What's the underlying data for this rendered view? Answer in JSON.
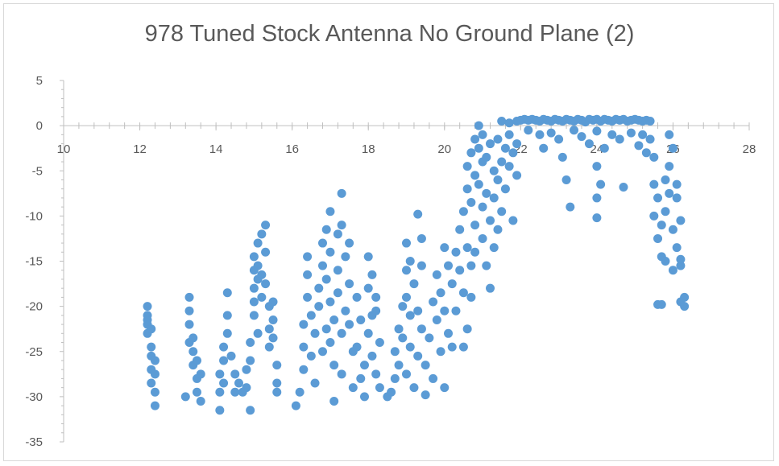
{
  "chart_data": {
    "type": "scatter",
    "title": "978 Tuned Stock Antenna No Ground Plane (2)",
    "xlabel": "",
    "ylabel": "",
    "xlim": [
      10,
      28
    ],
    "ylim": [
      -35,
      5
    ],
    "xticks": [
      10,
      12,
      14,
      16,
      18,
      20,
      22,
      24,
      26,
      28
    ],
    "yticks": [
      5,
      0,
      -5,
      -10,
      -15,
      -20,
      -25,
      -30,
      -35
    ],
    "grid": false,
    "legend": "none",
    "series": [
      {
        "color": "#5b9bd5",
        "points": [
          [
            12.2,
            -20.0
          ],
          [
            12.2,
            -21.0
          ],
          [
            12.2,
            -22.0
          ],
          [
            12.2,
            -23.0
          ],
          [
            12.3,
            -24.5
          ],
          [
            12.3,
            -25.5
          ],
          [
            12.3,
            -27.0
          ],
          [
            12.3,
            -28.5
          ],
          [
            12.4,
            -26.0
          ],
          [
            12.4,
            -29.5
          ],
          [
            12.4,
            -31.0
          ],
          [
            12.2,
            -21.5
          ],
          [
            12.3,
            -22.5
          ],
          [
            12.4,
            -27.5
          ],
          [
            13.3,
            -19.0
          ],
          [
            13.3,
            -20.5
          ],
          [
            13.3,
            -22.0
          ],
          [
            13.4,
            -23.5
          ],
          [
            13.4,
            -25.0
          ],
          [
            13.4,
            -26.5
          ],
          [
            13.5,
            -28.0
          ],
          [
            13.5,
            -29.5
          ],
          [
            13.6,
            -27.5
          ],
          [
            13.6,
            -30.5
          ],
          [
            13.2,
            -30.0
          ],
          [
            13.3,
            -24.0
          ],
          [
            13.5,
            -26.0
          ],
          [
            14.1,
            -27.5
          ],
          [
            14.1,
            -29.5
          ],
          [
            14.1,
            -31.5
          ],
          [
            14.2,
            -24.5
          ],
          [
            14.2,
            -26.0
          ],
          [
            14.2,
            -28.5
          ],
          [
            14.3,
            -18.5
          ],
          [
            14.3,
            -21.0
          ],
          [
            14.3,
            -23.0
          ],
          [
            14.4,
            -25.5
          ],
          [
            14.5,
            -27.5
          ],
          [
            14.5,
            -29.5
          ],
          [
            14.6,
            -28.5
          ],
          [
            14.8,
            -27.0
          ],
          [
            14.8,
            -29.0
          ],
          [
            14.9,
            -31.5
          ],
          [
            14.9,
            -24.0
          ],
          [
            14.9,
            -26.0
          ],
          [
            14.7,
            -29.5
          ],
          [
            15.0,
            -14.5
          ],
          [
            15.0,
            -16.0
          ],
          [
            15.0,
            -18.0
          ],
          [
            15.0,
            -19.5
          ],
          [
            15.1,
            -13.0
          ],
          [
            15.1,
            -15.5
          ],
          [
            15.1,
            -17.0
          ],
          [
            15.2,
            -12.0
          ],
          [
            15.2,
            -16.5
          ],
          [
            15.2,
            -19.0
          ],
          [
            15.3,
            -11.0
          ],
          [
            15.3,
            -14.0
          ],
          [
            15.3,
            -17.5
          ],
          [
            15.4,
            -20.0
          ],
          [
            15.4,
            -22.5
          ],
          [
            15.4,
            -24.5
          ],
          [
            15.5,
            -19.5
          ],
          [
            15.5,
            -21.5
          ],
          [
            15.5,
            -23.5
          ],
          [
            15.6,
            -26.5
          ],
          [
            15.6,
            -28.5
          ],
          [
            15.6,
            -29.5
          ],
          [
            15.0,
            -21.0
          ],
          [
            15.1,
            -23.0
          ],
          [
            16.1,
            -31.0
          ],
          [
            16.2,
            -29.5
          ],
          [
            16.3,
            -27.0
          ],
          [
            16.3,
            -24.5
          ],
          [
            16.3,
            -22.0
          ],
          [
            16.4,
            -19.0
          ],
          [
            16.4,
            -16.5
          ],
          [
            16.4,
            -14.5
          ],
          [
            16.5,
            -21.0
          ],
          [
            16.5,
            -25.5
          ],
          [
            16.6,
            -28.5
          ],
          [
            16.6,
            -23.0
          ],
          [
            16.7,
            -18.0
          ],
          [
            16.7,
            -20.0
          ],
          [
            16.8,
            -15.5
          ],
          [
            16.8,
            -13.0
          ],
          [
            16.8,
            -25.0
          ],
          [
            16.9,
            -11.5
          ],
          [
            16.9,
            -17.0
          ],
          [
            16.9,
            -22.5
          ],
          [
            17.0,
            -9.5
          ],
          [
            17.0,
            -14.0
          ],
          [
            17.0,
            -19.5
          ],
          [
            17.0,
            -24.0
          ],
          [
            17.1,
            -26.5
          ],
          [
            17.1,
            -30.5
          ],
          [
            17.1,
            -21.5
          ],
          [
            17.2,
            -12.0
          ],
          [
            17.2,
            -16.0
          ],
          [
            17.2,
            -18.5
          ],
          [
            17.3,
            -7.5
          ],
          [
            17.3,
            -11.0
          ],
          [
            17.3,
            -23.0
          ],
          [
            17.3,
            -27.5
          ],
          [
            17.4,
            -14.5
          ],
          [
            17.4,
            -20.5
          ],
          [
            17.5,
            -13.0
          ],
          [
            17.5,
            -17.5
          ],
          [
            17.5,
            -22.0
          ],
          [
            17.6,
            -25.0
          ],
          [
            17.6,
            -29.0
          ],
          [
            17.7,
            -19.0
          ],
          [
            17.7,
            -24.5
          ],
          [
            17.8,
            -21.5
          ],
          [
            17.8,
            -28.0
          ],
          [
            17.9,
            -30.0
          ],
          [
            17.9,
            -26.5
          ],
          [
            18.0,
            -14.5
          ],
          [
            18.0,
            -18.0
          ],
          [
            18.0,
            -23.0
          ],
          [
            18.1,
            -16.5
          ],
          [
            18.1,
            -21.0
          ],
          [
            18.1,
            -25.5
          ],
          [
            18.2,
            -19.0
          ],
          [
            18.2,
            -27.5
          ],
          [
            18.3,
            -29.0
          ],
          [
            18.3,
            -24.0
          ],
          [
            18.2,
            -20.5
          ],
          [
            18.5,
            -30.0
          ],
          [
            18.6,
            -29.5
          ],
          [
            18.7,
            -28.0
          ],
          [
            18.7,
            -25.0
          ],
          [
            18.8,
            -22.5
          ],
          [
            18.8,
            -26.5
          ],
          [
            18.9,
            -20.0
          ],
          [
            18.9,
            -23.5
          ],
          [
            19.0,
            -16.0
          ],
          [
            19.0,
            -19.0
          ],
          [
            19.0,
            -13.0
          ],
          [
            19.0,
            -27.5
          ],
          [
            19.1,
            -15.0
          ],
          [
            19.1,
            -21.0
          ],
          [
            19.1,
            -24.5
          ],
          [
            19.2,
            -17.5
          ],
          [
            19.2,
            -29.0
          ],
          [
            19.3,
            -9.8
          ],
          [
            19.3,
            -20.5
          ],
          [
            19.3,
            -25.5
          ],
          [
            19.4,
            -12.5
          ],
          [
            19.4,
            -15.5
          ],
          [
            19.4,
            -22.5
          ],
          [
            19.5,
            -29.8
          ],
          [
            19.5,
            -26.5
          ],
          [
            19.6,
            -23.5
          ],
          [
            19.7,
            -19.5
          ],
          [
            19.7,
            -28.0
          ],
          [
            19.8,
            -16.5
          ],
          [
            19.8,
            -21.5
          ],
          [
            19.9,
            -25.0
          ],
          [
            19.9,
            -18.5
          ],
          [
            20.0,
            -13.5
          ],
          [
            20.0,
            -20.5
          ],
          [
            20.0,
            -29.0
          ],
          [
            20.1,
            -15.5
          ],
          [
            20.1,
            -23.0
          ],
          [
            20.2,
            -24.5
          ],
          [
            20.2,
            -17.5
          ],
          [
            20.3,
            -14.0
          ],
          [
            20.3,
            -20.5
          ],
          [
            20.4,
            -11.5
          ],
          [
            20.4,
            -16.0
          ],
          [
            20.5,
            -18.5
          ],
          [
            20.5,
            -24.5
          ],
          [
            20.6,
            -13.5
          ],
          [
            20.6,
            -22.5
          ],
          [
            20.7,
            -15.5
          ],
          [
            20.7,
            -19.0
          ],
          [
            20.8,
            -11.0
          ],
          [
            20.8,
            -14.0
          ],
          [
            20.5,
            -9.5
          ],
          [
            20.6,
            -7.0
          ],
          [
            20.6,
            -4.5
          ],
          [
            20.7,
            -3.0
          ],
          [
            20.7,
            -8.5
          ],
          [
            20.8,
            -5.5
          ],
          [
            20.8,
            -1.5
          ],
          [
            20.9,
            0.0
          ],
          [
            20.9,
            -2.5
          ],
          [
            20.9,
            -6.5
          ],
          [
            21.0,
            -1.0
          ],
          [
            21.0,
            -4.0
          ],
          [
            21.0,
            -9.0
          ],
          [
            21.0,
            -12.5
          ],
          [
            21.1,
            -3.5
          ],
          [
            21.1,
            -7.5
          ],
          [
            21.1,
            -15.5
          ],
          [
            21.2,
            -2.0
          ],
          [
            21.2,
            -10.5
          ],
          [
            21.2,
            -18.0
          ],
          [
            21.3,
            -5.0
          ],
          [
            21.3,
            -8.0
          ],
          [
            21.3,
            -13.5
          ],
          [
            21.4,
            -1.5
          ],
          [
            21.4,
            -6.0
          ],
          [
            21.4,
            -11.5
          ],
          [
            21.5,
            0.5
          ],
          [
            21.5,
            -4.0
          ],
          [
            21.5,
            -9.5
          ],
          [
            21.6,
            -2.5
          ],
          [
            21.6,
            -7.0
          ],
          [
            21.7,
            0.3
          ],
          [
            21.7,
            -1.0
          ],
          [
            21.7,
            -4.5
          ],
          [
            21.8,
            -3.0
          ],
          [
            21.8,
            -10.5
          ],
          [
            21.9,
            0.5
          ],
          [
            21.9,
            -2.0
          ],
          [
            21.9,
            -5.5
          ],
          [
            22.0,
            0.6
          ],
          [
            22.1,
            0.7
          ],
          [
            22.2,
            0.6
          ],
          [
            22.3,
            0.7
          ],
          [
            22.4,
            0.6
          ],
          [
            22.5,
            0.5
          ],
          [
            22.6,
            0.7
          ],
          [
            22.7,
            0.6
          ],
          [
            22.8,
            0.5
          ],
          [
            22.9,
            0.7
          ],
          [
            23.0,
            0.6
          ],
          [
            23.1,
            0.5
          ],
          [
            23.2,
            0.7
          ],
          [
            23.3,
            0.6
          ],
          [
            23.4,
            0.5
          ],
          [
            23.5,
            0.7
          ],
          [
            23.6,
            0.6
          ],
          [
            23.7,
            0.4
          ],
          [
            23.8,
            0.7
          ],
          [
            23.9,
            0.6
          ],
          [
            24.0,
            0.7
          ],
          [
            24.1,
            0.5
          ],
          [
            24.2,
            0.7
          ],
          [
            24.3,
            0.6
          ],
          [
            24.4,
            0.5
          ],
          [
            24.5,
            0.7
          ],
          [
            24.6,
            0.6
          ],
          [
            24.7,
            0.7
          ],
          [
            24.8,
            0.5
          ],
          [
            24.9,
            0.6
          ],
          [
            25.0,
            0.7
          ],
          [
            25.1,
            0.6
          ],
          [
            25.2,
            0.5
          ],
          [
            25.3,
            0.6
          ],
          [
            25.4,
            0.5
          ],
          [
            22.2,
            -0.5
          ],
          [
            22.5,
            -1.0
          ],
          [
            22.6,
            -2.5
          ],
          [
            22.8,
            -0.8
          ],
          [
            23.0,
            -1.5
          ],
          [
            23.1,
            -3.5
          ],
          [
            23.2,
            -6.0
          ],
          [
            23.3,
            -9.0
          ],
          [
            23.4,
            -0.5
          ],
          [
            23.6,
            -1.2
          ],
          [
            23.8,
            -2.0
          ],
          [
            24.0,
            -0.6
          ],
          [
            24.0,
            -4.5
          ],
          [
            24.0,
            -8.0
          ],
          [
            24.0,
            -10.2
          ],
          [
            24.1,
            -6.5
          ],
          [
            24.2,
            -2.5
          ],
          [
            24.4,
            -1.0
          ],
          [
            24.6,
            -1.5
          ],
          [
            24.7,
            -6.8
          ],
          [
            24.9,
            -0.8
          ],
          [
            25.1,
            -2.2
          ],
          [
            25.2,
            -1.0
          ],
          [
            25.3,
            -3.0
          ],
          [
            25.4,
            -1.5
          ],
          [
            25.5,
            -3.5
          ],
          [
            25.5,
            -6.5
          ],
          [
            25.5,
            -10.0
          ],
          [
            25.6,
            -8.0
          ],
          [
            25.6,
            -12.5
          ],
          [
            25.7,
            -11.0
          ],
          [
            25.7,
            -14.5
          ],
          [
            25.7,
            -19.8
          ],
          [
            25.8,
            -6.0
          ],
          [
            25.8,
            -9.5
          ],
          [
            25.8,
            -15.0
          ],
          [
            25.9,
            -4.5
          ],
          [
            25.9,
            -7.5
          ],
          [
            25.9,
            -1.0
          ],
          [
            26.0,
            -11.5
          ],
          [
            26.0,
            -16.0
          ],
          [
            26.0,
            -2.5
          ],
          [
            26.1,
            -8.0
          ],
          [
            26.1,
            -13.5
          ],
          [
            26.1,
            -6.5
          ],
          [
            26.2,
            -10.5
          ],
          [
            26.2,
            -15.5
          ],
          [
            26.2,
            -19.5
          ],
          [
            26.3,
            -20.0
          ],
          [
            26.3,
            -19.0
          ],
          [
            26.2,
            -14.8
          ],
          [
            25.6,
            -19.8
          ]
        ]
      }
    ]
  }
}
